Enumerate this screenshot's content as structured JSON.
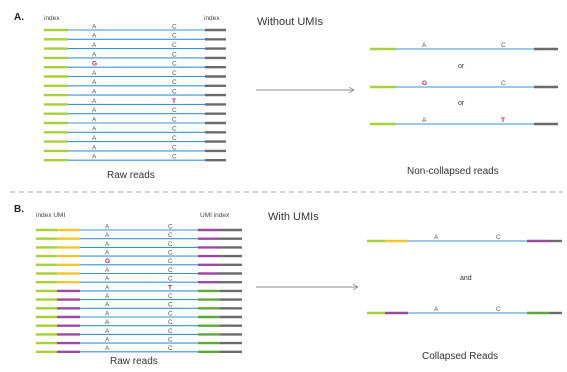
{
  "colors": {
    "read": "#3a93d1",
    "index_left": "#a9cf3a",
    "index_right": "#6b6b6b",
    "umi_yellow": "#f2c72b",
    "umi_purple": "#9a4ca0",
    "umi_green": "#5ea83a",
    "mutation": "#b5176a",
    "divider": "#8a8a8a",
    "arrow": "#666666"
  },
  "panel_a": {
    "label": "A.",
    "title": "Without UMIs",
    "index_left_label": "index",
    "index_right_label": "index",
    "raw_caption": "Raw reads",
    "result_caption": "Non-collapsed reads",
    "or_label": "or",
    "result_reads": [
      {
        "first": "A",
        "second": "C",
        "mut": ""
      },
      {
        "first": "G",
        "second": "C",
        "mut": "first"
      },
      {
        "first": "A",
        "second": "T",
        "mut": "second"
      }
    ]
  },
  "panel_b": {
    "label": "B.",
    "title": "With UMIs",
    "index_umi_left_label": "index UMI",
    "umi_index_right_label": "UMI index",
    "raw_caption": "Raw reads",
    "result_caption": "Collapsed Reads",
    "and_label": "and",
    "result_reads": [
      {
        "first": "A",
        "second": "C",
        "umi": "yellow"
      },
      {
        "first": "A",
        "second": "C",
        "umi": "purple"
      }
    ]
  },
  "raw_reads_a": [
    {
      "first": "A",
      "second": "C"
    },
    {
      "first": "A",
      "second": "C"
    },
    {
      "first": "A",
      "second": "C"
    },
    {
      "first": "A",
      "second": "C"
    },
    {
      "first": "G",
      "second": "C",
      "mut": "first"
    },
    {
      "first": "A",
      "second": "C"
    },
    {
      "first": "A",
      "second": "C"
    },
    {
      "first": "A",
      "second": "C"
    },
    {
      "first": "A",
      "second": "T",
      "mut": "second"
    },
    {
      "first": "A",
      "second": "C"
    },
    {
      "first": "A",
      "second": "C"
    },
    {
      "first": "A",
      "second": "C"
    },
    {
      "first": "A",
      "second": "C"
    },
    {
      "first": "A",
      "second": "C"
    },
    {
      "first": "A",
      "second": "C"
    }
  ],
  "raw_reads_b": [
    {
      "first": "A",
      "second": "C",
      "umi": "yellow"
    },
    {
      "first": "A",
      "second": "C",
      "umi": "yellow"
    },
    {
      "first": "A",
      "second": "C",
      "umi": "yellow"
    },
    {
      "first": "A",
      "second": "C",
      "umi": "yellow"
    },
    {
      "first": "G",
      "second": "C",
      "umi": "yellow",
      "mut": "first"
    },
    {
      "first": "A",
      "second": "C",
      "umi": "yellow"
    },
    {
      "first": "A",
      "second": "C",
      "umi": "yellow"
    },
    {
      "first": "A",
      "second": "T",
      "umi": "purple",
      "mut": "second"
    },
    {
      "first": "A",
      "second": "C",
      "umi": "purple"
    },
    {
      "first": "A",
      "second": "C",
      "umi": "purple"
    },
    {
      "first": "A",
      "second": "C",
      "umi": "purple"
    },
    {
      "first": "A",
      "second": "C",
      "umi": "purple"
    },
    {
      "first": "A",
      "second": "C",
      "umi": "purple"
    },
    {
      "first": "A",
      "second": "C",
      "umi": "purple"
    },
    {
      "first": "A",
      "second": "C",
      "umi": "purple"
    }
  ]
}
